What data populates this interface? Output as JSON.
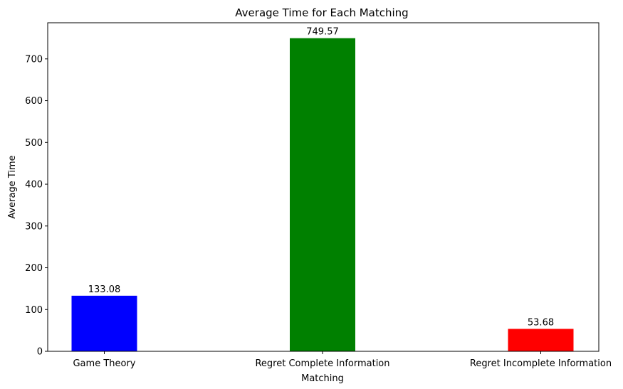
{
  "chart_data": {
    "type": "bar",
    "title": "Average Time for Each Matching",
    "xlabel": "Matching",
    "ylabel": "Average Time",
    "categories": [
      "Game Theory",
      "Regret Complete Information",
      "Regret Incomplete Information"
    ],
    "values": [
      133.08,
      749.57,
      53.68
    ],
    "value_labels": [
      "133.08",
      "749.57",
      "53.68"
    ],
    "colors": [
      "#0000ff",
      "#008000",
      "#ff0000"
    ],
    "ylim": [
      0,
      786.5
    ],
    "yticks": [
      0,
      100,
      200,
      300,
      400,
      500,
      600,
      700
    ],
    "grid": false,
    "legend": "none"
  }
}
